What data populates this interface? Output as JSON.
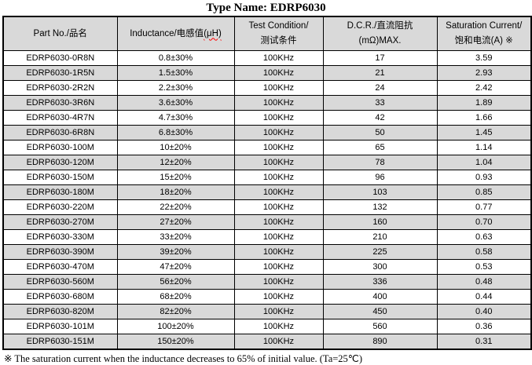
{
  "page": {
    "title": "Type Name: EDRP6030"
  },
  "table": {
    "headers": {
      "part": "Part No./品名",
      "inductance_main": "Inductance/电感值",
      "inductance_unit": "(μH)",
      "test_line1": "Test Condition/",
      "test_line2": "测试条件",
      "dcr_line1": "D.C.R./直流阻抗",
      "dcr_line2": "(mΩ)MAX.",
      "sat_line1": "Saturation Current/",
      "sat_line2": "饱和电流(A) ※"
    },
    "rows": [
      {
        "part": "EDRP6030-0R8N",
        "inductance": "0.8±30%",
        "test": "100KHz",
        "dcr": "17",
        "sat": "3.59"
      },
      {
        "part": "EDRP6030-1R5N",
        "inductance": "1.5±30%",
        "test": "100KHz",
        "dcr": "21",
        "sat": "2.93"
      },
      {
        "part": "EDRP6030-2R2N",
        "inductance": "2.2±30%",
        "test": "100KHz",
        "dcr": "24",
        "sat": "2.42"
      },
      {
        "part": "EDRP6030-3R6N",
        "inductance": "3.6±30%",
        "test": "100KHz",
        "dcr": "33",
        "sat": "1.89"
      },
      {
        "part": "EDRP6030-4R7N",
        "inductance": "4.7±30%",
        "test": "100KHz",
        "dcr": "42",
        "sat": "1.66"
      },
      {
        "part": "EDRP6030-6R8N",
        "inductance": "6.8±30%",
        "test": "100KHz",
        "dcr": "50",
        "sat": "1.45"
      },
      {
        "part": "EDRP6030-100M",
        "inductance": "10±20%",
        "test": "100KHz",
        "dcr": "65",
        "sat": "1.14"
      },
      {
        "part": "EDRP6030-120M",
        "inductance": "12±20%",
        "test": "100KHz",
        "dcr": "78",
        "sat": "1.04"
      },
      {
        "part": "EDRP6030-150M",
        "inductance": "15±20%",
        "test": "100KHz",
        "dcr": "96",
        "sat": "0.93"
      },
      {
        "part": "EDRP6030-180M",
        "inductance": "18±20%",
        "test": "100KHz",
        "dcr": "103",
        "sat": "0.85"
      },
      {
        "part": "EDRP6030-220M",
        "inductance": "22±20%",
        "test": "100KHz",
        "dcr": "132",
        "sat": "0.77"
      },
      {
        "part": "EDRP6030-270M",
        "inductance": "27±20%",
        "test": "100KHz",
        "dcr": "160",
        "sat": "0.70"
      },
      {
        "part": "EDRP6030-330M",
        "inductance": "33±20%",
        "test": "100KHz",
        "dcr": "210",
        "sat": "0.63"
      },
      {
        "part": "EDRP6030-390M",
        "inductance": "39±20%",
        "test": "100KHz",
        "dcr": "225",
        "sat": "0.58"
      },
      {
        "part": "EDRP6030-470M",
        "inductance": "47±20%",
        "test": "100KHz",
        "dcr": "300",
        "sat": "0.53"
      },
      {
        "part": "EDRP6030-560M",
        "inductance": "56±20%",
        "test": "100KHz",
        "dcr": "336",
        "sat": "0.48"
      },
      {
        "part": "EDRP6030-680M",
        "inductance": "68±20%",
        "test": "100KHz",
        "dcr": "400",
        "sat": "0.44"
      },
      {
        "part": "EDRP6030-820M",
        "inductance": "82±20%",
        "test": "100KHz",
        "dcr": "450",
        "sat": "0.40"
      },
      {
        "part": "EDRP6030-101M",
        "inductance": "100±20%",
        "test": "100KHz",
        "dcr": "560",
        "sat": "0.36"
      },
      {
        "part": "EDRP6030-151M",
        "inductance": "150±20%",
        "test": "100KHz",
        "dcr": "890",
        "sat": "0.31"
      }
    ]
  },
  "footnote": "※  The saturation current when the inductance decreases to 65% of initial value. (Ta=25℃)",
  "colors": {
    "header_bg": "#d9d9d9",
    "row_alt_bg": "#d9d9d9",
    "border": "#000000",
    "squiggle": "#ff0000"
  }
}
